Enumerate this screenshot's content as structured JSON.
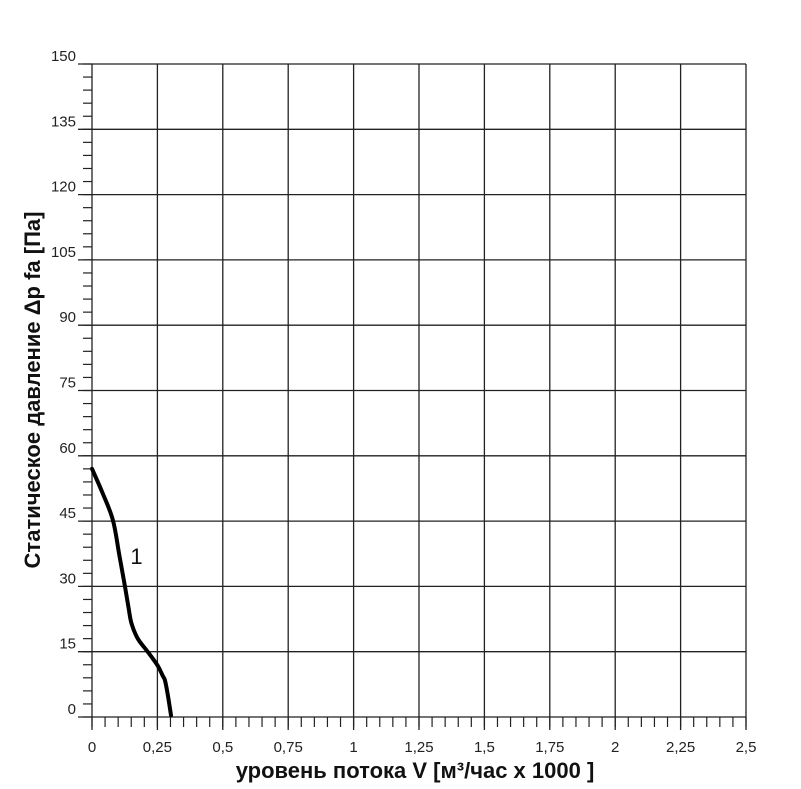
{
  "chart_data": {
    "type": "line",
    "title": "",
    "xlabel": "уровень потока  V [м³/час x 1000 ]",
    "ylabel": "Статическое давление  Δp fa [Па]",
    "xlim": [
      0,
      2.5
    ],
    "ylim": [
      0,
      150
    ],
    "grid": true,
    "x_ticks": [
      "0",
      "0,25",
      "0,5",
      "0,75",
      "1",
      "1,25",
      "1,5",
      "1,75",
      "2",
      "2,25",
      "2,5"
    ],
    "x_tick_values": [
      0,
      0.25,
      0.5,
      0.75,
      1,
      1.25,
      1.5,
      1.75,
      2,
      2.25,
      2.5
    ],
    "y_ticks": [
      "0",
      "15",
      "30",
      "45",
      "60",
      "75",
      "90",
      "105",
      "120",
      "135",
      "150"
    ],
    "y_tick_values": [
      0,
      15,
      30,
      45,
      60,
      75,
      90,
      105,
      120,
      135,
      150
    ],
    "series": [
      {
        "name": "1",
        "color": "#000000",
        "x": [
          0,
          0.04,
          0.08,
          0.105,
          0.126,
          0.14,
          0.151,
          0.175,
          0.209,
          0.235,
          0.254,
          0.27,
          0.279,
          0.29,
          0.302
        ],
        "y": [
          57,
          51.5,
          45.2,
          37,
          30,
          25,
          21.5,
          18,
          15.3,
          13.2,
          11.5,
          9.5,
          8.4,
          5,
          0.4
        ]
      }
    ],
    "annotations": [
      {
        "text": "1",
        "x": 0.2,
        "y": 37
      }
    ]
  }
}
